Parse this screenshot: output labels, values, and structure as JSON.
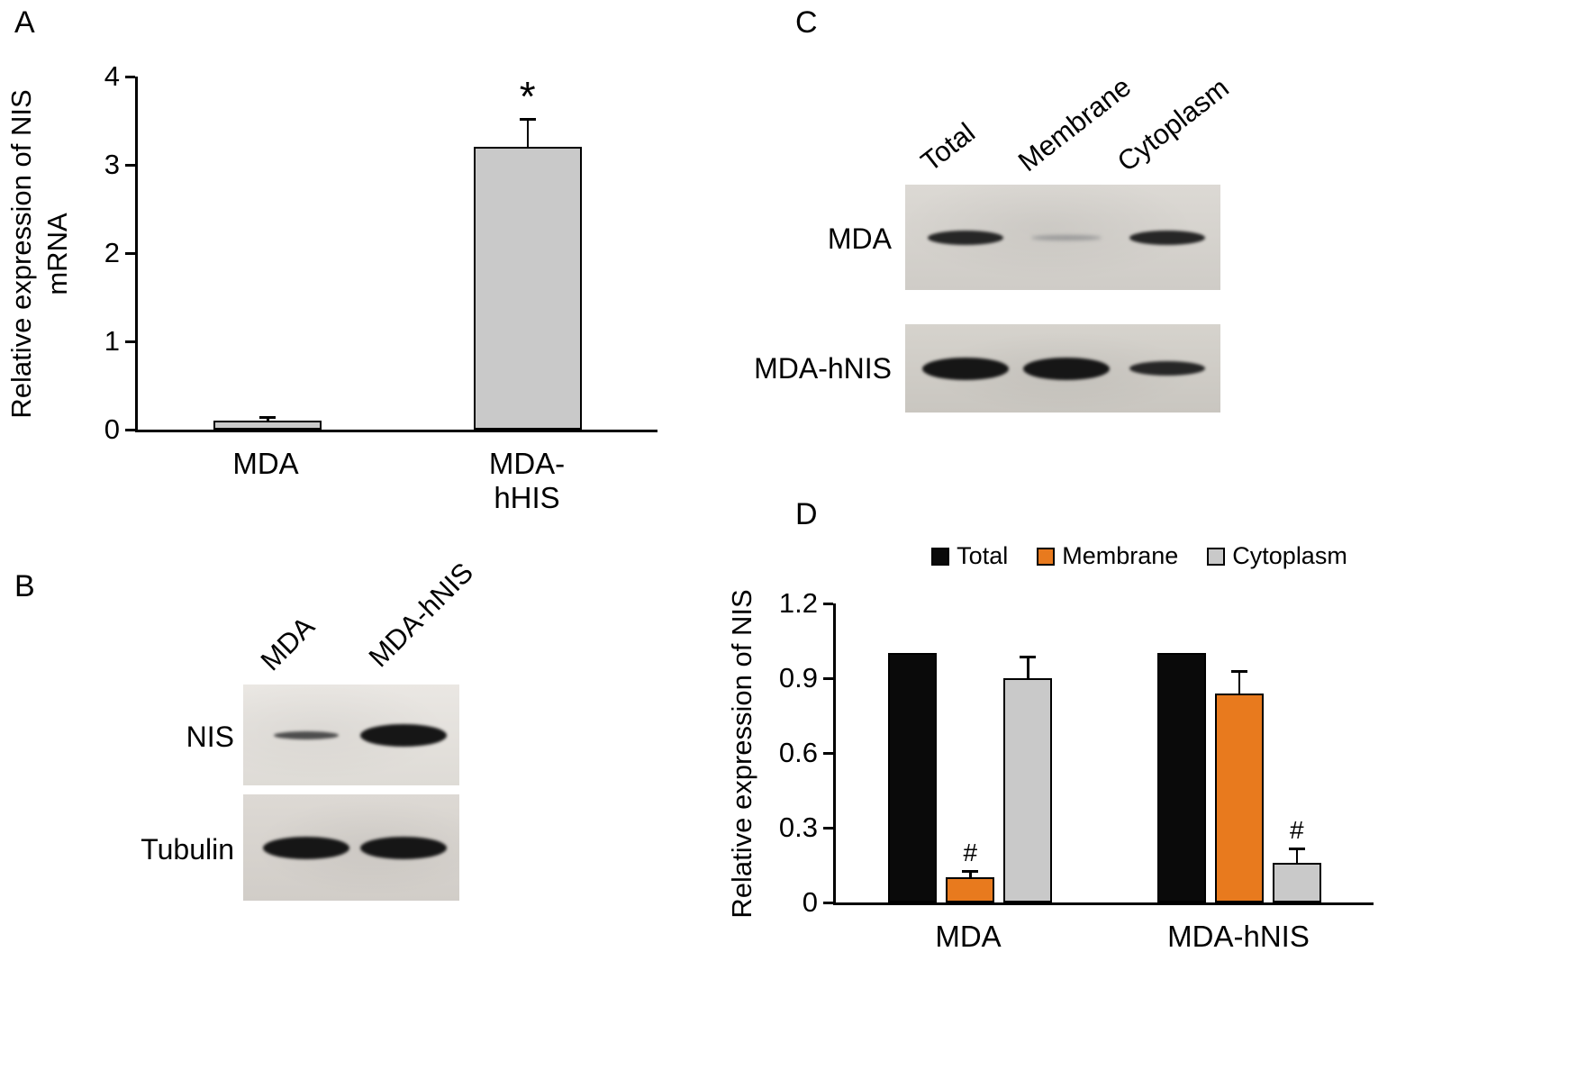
{
  "panel_a": {
    "label": "A",
    "ylabel_line1": "Relative expression of NIS",
    "ylabel_line2": "mRNA"
  },
  "panel_b": {
    "label": "B",
    "lanes": [
      "MDA",
      "MDA-hNIS"
    ],
    "rows": [
      {
        "label": "NIS",
        "bands": [
          "light",
          "strong"
        ]
      },
      {
        "label": "Tubulin",
        "bands": [
          "strong",
          "strong"
        ]
      }
    ]
  },
  "panel_c": {
    "label": "C",
    "lanes": [
      "Total",
      "Membrane",
      "Cytoplasm"
    ],
    "rows": [
      {
        "label": "MDA",
        "bands": [
          "medium",
          "faint",
          "medium"
        ]
      },
      {
        "label": "MDA-hNIS",
        "bands": [
          "strong",
          "strong",
          "medium"
        ]
      }
    ]
  },
  "panel_d": {
    "label": "D",
    "ylabel": "Relative expression of NIS"
  },
  "chart_data": [
    {
      "id": "chartA",
      "type": "bar",
      "panel": "A",
      "title": "",
      "categories": [
        "MDA",
        "MDA-hHIS"
      ],
      "series": [
        {
          "name": "NIS mRNA",
          "color": "#c9c9c9",
          "values": [
            0.1,
            3.2
          ],
          "errors": [
            0.02,
            0.3
          ],
          "annotations": [
            "",
            "*"
          ]
        }
      ],
      "xlabel": "",
      "ylabel": "Relative expression of NIS mRNA",
      "ylim": [
        0,
        4
      ],
      "yticks": [
        "0",
        "1",
        "2",
        "3",
        "4"
      ],
      "grid": false,
      "legend_position": "none"
    },
    {
      "id": "chartD",
      "type": "bar",
      "panel": "D",
      "title": "",
      "categories": [
        "MDA",
        "MDA-hNIS"
      ],
      "series": [
        {
          "name": "Total",
          "color": "#0a0a0a",
          "values": [
            1.0,
            1.0
          ],
          "errors": [
            0,
            0
          ],
          "annotations": [
            "",
            ""
          ]
        },
        {
          "name": "Membrane",
          "color": "#e87a1e",
          "values": [
            0.1,
            0.84
          ],
          "errors": [
            0.02,
            0.08
          ],
          "annotations": [
            "#",
            ""
          ]
        },
        {
          "name": "Cytoplasm",
          "color": "#c9c9c9",
          "values": [
            0.9,
            0.16
          ],
          "errors": [
            0.08,
            0.05
          ],
          "annotations": [
            "",
            "#"
          ]
        }
      ],
      "xlabel": "",
      "ylabel": "Relative expression of NIS",
      "ylim": [
        0,
        1.2
      ],
      "yticks": [
        "0",
        "0.3",
        "0.6",
        "0.9",
        "1.2"
      ],
      "grid": false,
      "legend_position": "top"
    }
  ]
}
